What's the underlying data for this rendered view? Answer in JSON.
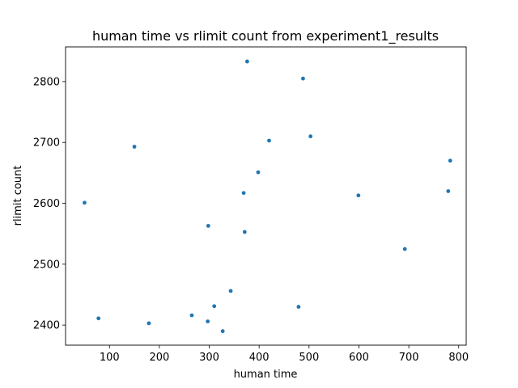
{
  "chart_data": {
    "type": "scatter",
    "title": "human time vs rlimit count from experiment1_results",
    "xlabel": "human time",
    "ylabel": "rlimit count",
    "xlim": [
      12,
      815
    ],
    "ylim": [
      2367,
      2857
    ],
    "xticks": [
      100,
      200,
      300,
      400,
      500,
      600,
      700,
      800
    ],
    "yticks": [
      2400,
      2500,
      2600,
      2700,
      2800
    ],
    "grid": false,
    "marker_color": "#1f77b4",
    "points": [
      {
        "x": 376,
        "y": 2833
      },
      {
        "x": 488,
        "y": 2805
      },
      {
        "x": 503,
        "y": 2710
      },
      {
        "x": 420,
        "y": 2703
      },
      {
        "x": 150,
        "y": 2693
      },
      {
        "x": 783,
        "y": 2670
      },
      {
        "x": 398,
        "y": 2651
      },
      {
        "x": 369,
        "y": 2617
      },
      {
        "x": 779,
        "y": 2620
      },
      {
        "x": 599,
        "y": 2613
      },
      {
        "x": 50,
        "y": 2601
      },
      {
        "x": 298,
        "y": 2563
      },
      {
        "x": 371,
        "y": 2553
      },
      {
        "x": 692,
        "y": 2525
      },
      {
        "x": 343,
        "y": 2456
      },
      {
        "x": 310,
        "y": 2431
      },
      {
        "x": 479,
        "y": 2430
      },
      {
        "x": 265,
        "y": 2416
      },
      {
        "x": 78,
        "y": 2411
      },
      {
        "x": 297,
        "y": 2406
      },
      {
        "x": 179,
        "y": 2403
      },
      {
        "x": 327,
        "y": 2390
      }
    ]
  }
}
